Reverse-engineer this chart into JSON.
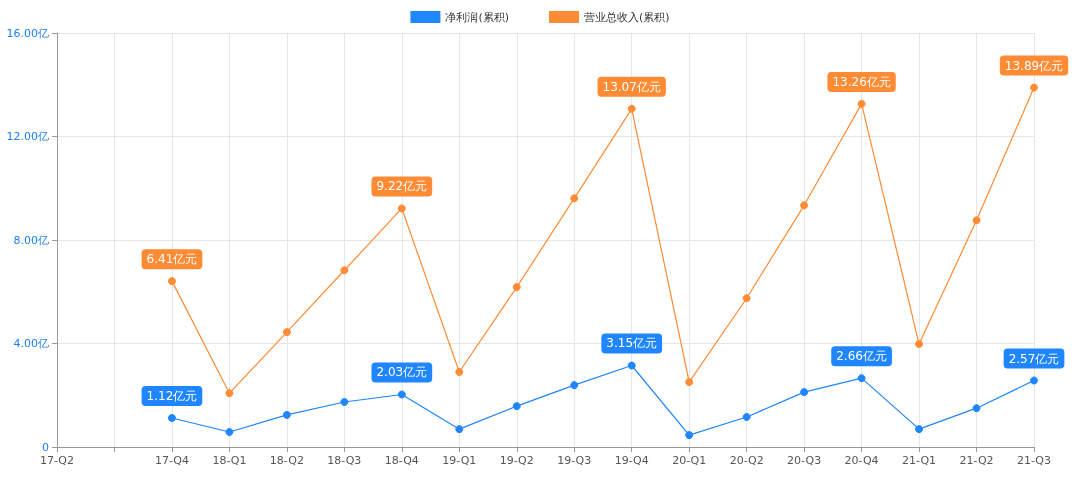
{
  "chart_data": {
    "type": "line",
    "categories": [
      "17-Q2",
      null,
      "17-Q4",
      "18-Q1",
      "18-Q2",
      "18-Q3",
      "18-Q4",
      "19-Q1",
      "19-Q2",
      "19-Q3",
      "19-Q4",
      "20-Q1",
      "20-Q2",
      "20-Q3",
      "20-Q4",
      "21-Q1",
      "21-Q2",
      "21-Q3"
    ],
    "series": [
      {
        "name": "净利润(累积)",
        "color": "#1f86ff",
        "values": [
          null,
          null,
          1.12,
          0.58,
          1.24,
          1.74,
          2.03,
          0.69,
          1.58,
          2.39,
          3.15,
          0.46,
          1.16,
          2.12,
          2.66,
          0.69,
          1.5,
          2.57
        ],
        "value_labels": [
          null,
          null,
          "1.12亿元",
          null,
          null,
          null,
          "2.03亿元",
          null,
          null,
          null,
          "3.15亿元",
          null,
          null,
          null,
          "2.66亿元",
          null,
          null,
          "2.57亿元"
        ]
      },
      {
        "name": "营业总收入(累积)",
        "color": "#ff8b34",
        "values": [
          null,
          null,
          6.41,
          2.08,
          4.44,
          6.83,
          9.22,
          2.9,
          6.18,
          9.61,
          13.07,
          2.51,
          5.75,
          9.34,
          13.26,
          3.98,
          8.76,
          13.89
        ],
        "value_labels": [
          null,
          null,
          "6.41亿元",
          null,
          null,
          null,
          "9.22亿元",
          null,
          null,
          null,
          "13.07亿元",
          null,
          null,
          null,
          "13.26亿元",
          null,
          null,
          "13.89亿元"
        ]
      }
    ],
    "ylim": [
      0,
      16
    ],
    "yticks": [
      {
        "value": 0,
        "label": "0"
      },
      {
        "value": 4,
        "label": "4.00亿"
      },
      {
        "value": 8,
        "label": "8.00亿"
      },
      {
        "value": 12,
        "label": "12.00亿"
      },
      {
        "value": 16,
        "label": "16.00亿"
      }
    ],
    "grid": true,
    "legend": "top",
    "marker": "circle",
    "line_style": "solid"
  }
}
